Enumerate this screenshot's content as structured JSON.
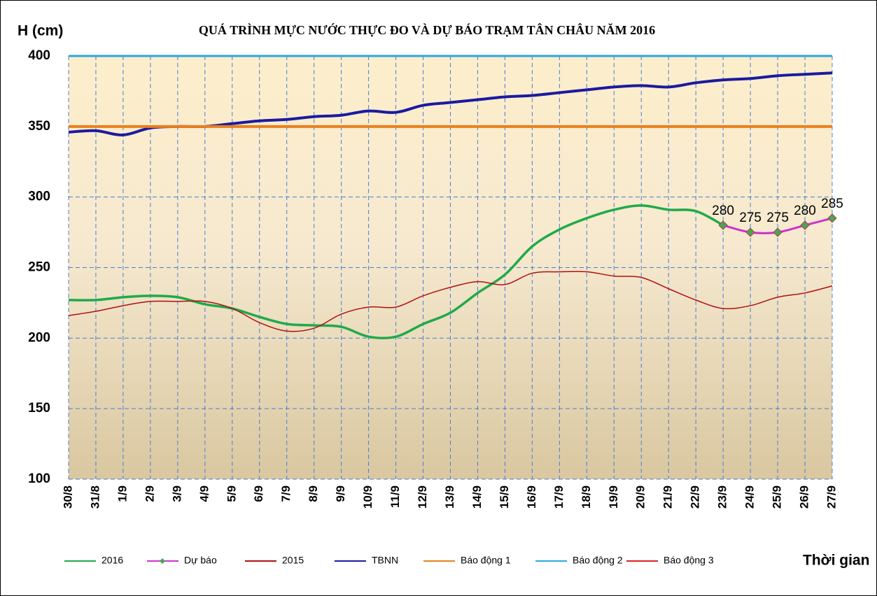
{
  "chart_data": {
    "type": "line",
    "title": "QUÁ TRÌNH MỰC NƯỚC THỰC ĐO VÀ DỰ BÁO TRẠM TÂN CHÂU NĂM 2016",
    "y_label": "H (cm)",
    "x_label": "Thời gian",
    "categories": [
      "30/8",
      "31/8",
      "1/9",
      "2/9",
      "3/9",
      "4/9",
      "5/9",
      "6/9",
      "7/9",
      "8/9",
      "9/9",
      "10/9",
      "11/9",
      "12/9",
      "13/9",
      "14/9",
      "15/9",
      "16/9",
      "17/9",
      "18/9",
      "19/9",
      "20/9",
      "21/9",
      "22/9",
      "23/9",
      "24/9",
      "25/9",
      "26/9",
      "27/9"
    ],
    "ylim": [
      100,
      400
    ],
    "yticks": [
      100,
      150,
      200,
      250,
      300,
      350,
      400
    ],
    "grid": true,
    "legend": "bottom",
    "series": [
      {
        "name": "2016",
        "color": "#1faa4a",
        "width": 3.5,
        "values": [
          227,
          227,
          229,
          230,
          229,
          224,
          221,
          215,
          210,
          209,
          208,
          201,
          201,
          210,
          218,
          232,
          245,
          265,
          277,
          285,
          291,
          294,
          291,
          290,
          280,
          null,
          null,
          null,
          null
        ]
      },
      {
        "name": "Dự báo",
        "color": "#cc33cc",
        "width": 3,
        "marker": "diamond",
        "marker_color": "#4aa35a",
        "values": [
          null,
          null,
          null,
          null,
          null,
          null,
          null,
          null,
          null,
          null,
          null,
          null,
          null,
          null,
          null,
          null,
          null,
          null,
          null,
          null,
          null,
          null,
          null,
          null,
          280,
          275,
          275,
          280,
          285
        ]
      },
      {
        "name": "2015",
        "color": "#b01010",
        "width": 1.5,
        "values": [
          216,
          219,
          223,
          226,
          226,
          226,
          221,
          211,
          205,
          207,
          217,
          222,
          222,
          230,
          236,
          240,
          238,
          246,
          247,
          247,
          244,
          243,
          235,
          227,
          221,
          223,
          229,
          232,
          237
        ]
      },
      {
        "name": "TBNN",
        "color": "#1a1aa0",
        "width": 4,
        "values": [
          346,
          347,
          344,
          349,
          350,
          350,
          352,
          354,
          355,
          357,
          358,
          361,
          360,
          365,
          367,
          369,
          371,
          372,
          374,
          376,
          378,
          379,
          378,
          381,
          383,
          384,
          386,
          387,
          388
        ]
      },
      {
        "name": "Báo động 1",
        "color": "#e8801e",
        "width": 4,
        "values": [
          350,
          350,
          350,
          350,
          350,
          350,
          350,
          350,
          350,
          350,
          350,
          350,
          350,
          350,
          350,
          350,
          350,
          350,
          350,
          350,
          350,
          350,
          350,
          350,
          350,
          350,
          350,
          350,
          350
        ]
      },
      {
        "name": "Báo động 2",
        "color": "#2aa8e0",
        "width": 3,
        "values": [
          400,
          400,
          400,
          400,
          400,
          400,
          400,
          400,
          400,
          400,
          400,
          400,
          400,
          400,
          400,
          400,
          400,
          400,
          400,
          400,
          400,
          400,
          400,
          400,
          400,
          400,
          400,
          400,
          400
        ]
      },
      {
        "name": "Báo động 3",
        "color": "#e02020",
        "width": 2,
        "values": [
          null,
          null,
          null,
          null,
          null,
          null,
          null,
          null,
          null,
          null,
          null,
          null,
          null,
          null,
          null,
          null,
          null,
          null,
          null,
          null,
          null,
          null,
          null,
          null,
          null,
          null,
          null,
          null,
          null
        ]
      }
    ]
  }
}
